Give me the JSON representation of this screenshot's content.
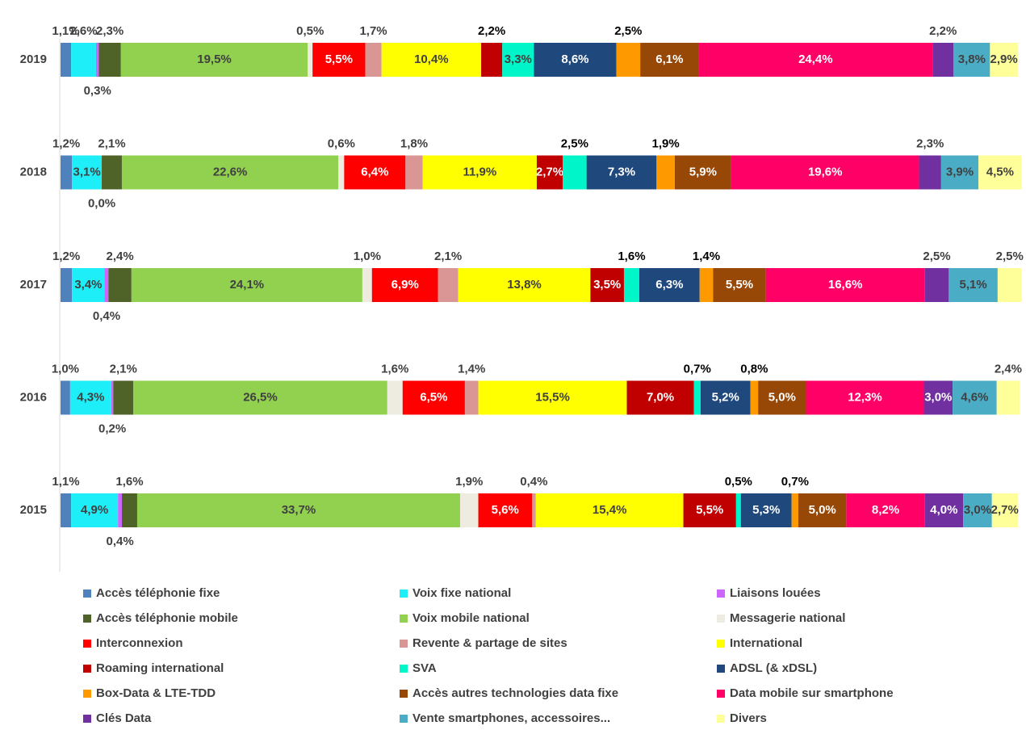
{
  "chart_data": {
    "type": "stacked-bar-horizontal",
    "xlim": [
      0,
      100
    ],
    "categories": [
      "2019",
      "2018",
      "2017",
      "2016",
      "2015"
    ],
    "series": [
      {
        "name": "Accès téléphonie fixe",
        "color": "#4f81bd",
        "values": [
          1.1,
          1.2,
          1.2,
          1.0,
          1.1
        ],
        "value_labels": [
          "1,1%",
          "1,2%",
          "1,2%",
          "1,0%",
          "1,1%"
        ]
      },
      {
        "name": "Voix fixe national",
        "color": "#1eeef7",
        "values": [
          2.6,
          3.1,
          3.4,
          4.3,
          4.9
        ],
        "value_labels": [
          "2,6%",
          "3,1%",
          "3,4%",
          "4,3%",
          "4,9%"
        ]
      },
      {
        "name": "Liaisons louées",
        "color": "#cc66ff",
        "values": [
          0.3,
          0.0,
          0.4,
          0.2,
          0.4
        ],
        "value_labels": [
          "0,3%",
          "0,0%",
          "0,4%",
          "0,2%",
          "0,4%"
        ]
      },
      {
        "name": "Accès téléphonie mobile",
        "color": "#4f6228",
        "values": [
          2.3,
          2.1,
          2.4,
          2.1,
          1.6
        ],
        "value_labels": [
          "2,3%",
          "2,1%",
          "2,4%",
          "2,1%",
          "1,6%"
        ]
      },
      {
        "name": "Voix mobile national",
        "color": "#92d050",
        "values": [
          19.5,
          22.6,
          24.1,
          26.5,
          33.7
        ],
        "value_labels": [
          "19,5%",
          "22,6%",
          "24,1%",
          "26,5%",
          "33,7%"
        ]
      },
      {
        "name": "Messagerie national",
        "color": "#eeece1",
        "values": [
          0.5,
          0.6,
          1.0,
          1.6,
          1.9
        ],
        "value_labels": [
          "0,5%",
          "0,6%",
          "1,0%",
          "1,6%",
          "1,9%"
        ]
      },
      {
        "name": "Interconnexion",
        "color": "#ff0000",
        "values": [
          5.5,
          6.4,
          6.9,
          6.5,
          5.6
        ],
        "value_labels": [
          "5,5%",
          "6,4%",
          "6,9%",
          "6,5%",
          "5,6%"
        ]
      },
      {
        "name": "Revente & partage de sites",
        "color": "#da9694",
        "values": [
          1.7,
          1.8,
          2.1,
          1.4,
          0.4
        ],
        "value_labels": [
          "1,7%",
          "1,8%",
          "2,1%",
          "1,4%",
          "0,4%"
        ]
      },
      {
        "name": "International",
        "color": "#ffff00",
        "values": [
          10.4,
          11.9,
          13.8,
          15.5,
          15.4
        ],
        "value_labels": [
          "10,4%",
          "11,9%",
          "13,8%",
          "15,5%",
          "15,4%"
        ]
      },
      {
        "name": "Roaming international",
        "color": "#c00000",
        "values": [
          2.2,
          2.7,
          3.5,
          7.0,
          5.5
        ],
        "value_labels": [
          "2,2%",
          "2,7%",
          "3,5%",
          "7,0%",
          "5,5%"
        ]
      },
      {
        "name": "SVA",
        "color": "#00f5c8",
        "values": [
          3.3,
          2.5,
          1.6,
          0.7,
          0.5
        ],
        "value_labels": [
          "3,3%",
          "2,5%",
          "1,6%",
          "0,7%",
          "0,5%"
        ]
      },
      {
        "name": "ADSL (& xDSL)",
        "color": "#1f497d",
        "values": [
          8.6,
          7.3,
          6.3,
          5.2,
          5.3
        ],
        "value_labels": [
          "8,6%",
          "7,3%",
          "6,3%",
          "5,2%",
          "5,3%"
        ]
      },
      {
        "name": "Box-Data & LTE-TDD",
        "color": "#ff9900",
        "values": [
          2.5,
          1.9,
          1.4,
          0.8,
          0.7
        ],
        "value_labels": [
          "2,5%",
          "1,9%",
          "1,4%",
          "0,8%",
          "0,7%"
        ]
      },
      {
        "name": "Accès autres technologies data fixe",
        "color": "#974706",
        "values": [
          6.1,
          5.9,
          5.5,
          5.0,
          5.0
        ],
        "value_labels": [
          "6,1%",
          "5,9%",
          "5,5%",
          "5,0%",
          "5,0%"
        ]
      },
      {
        "name": "Data mobile sur smartphone",
        "color": "#ff0066",
        "values": [
          24.4,
          19.6,
          16.6,
          12.3,
          8.2
        ],
        "value_labels": [
          "24,4%",
          "19,6%",
          "16,6%",
          "12,3%",
          "8,2%"
        ]
      },
      {
        "name": "Clés Data",
        "color": "#7030a0",
        "values": [
          2.2,
          2.3,
          2.5,
          3.0,
          4.0
        ],
        "value_labels": [
          "2,2%",
          "2,3%",
          "2,5%",
          "3,0%",
          "4,0%"
        ]
      },
      {
        "name": "Vente smartphones, accessoires...",
        "color": "#4bacc6",
        "values": [
          3.8,
          3.9,
          5.1,
          4.6,
          3.0
        ],
        "value_labels": [
          "3,8%",
          "3,9%",
          "5,1%",
          "4,6%",
          "3,0%"
        ]
      },
      {
        "name": "Divers",
        "color": "#ffff99",
        "values": [
          2.9,
          4.5,
          2.5,
          2.4,
          2.7
        ],
        "value_labels": [
          "2,9%",
          "4,5%",
          "2,5%",
          "2,4%",
          "2,7%"
        ]
      }
    ]
  }
}
